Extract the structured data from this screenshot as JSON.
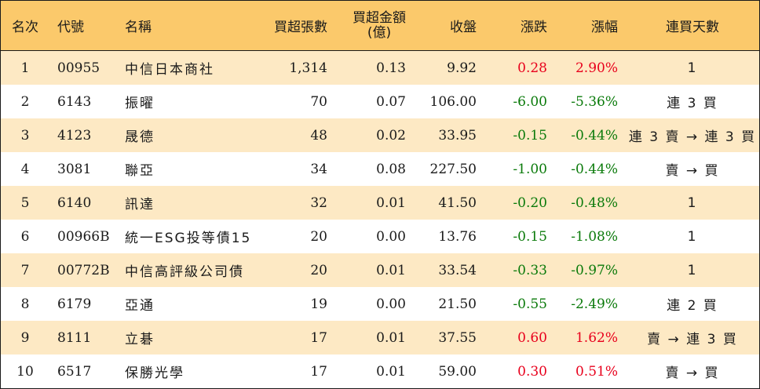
{
  "headers": {
    "rank": "名次",
    "code": "代號",
    "name": "名稱",
    "net_buy_volume": "買超張數",
    "net_buy_amount_line1": "買超金額",
    "net_buy_amount_line2": "(億)",
    "close": "收盤",
    "change": "漲跌",
    "change_pct": "漲幅",
    "consecutive_days": "連買天數"
  },
  "colors": {
    "header_bg": "#fbc96b",
    "stripe_bg": "#fde9c4",
    "up": "#e8001c",
    "down": "#0a7a0a"
  },
  "rows": [
    {
      "rank": "1",
      "code": "00955",
      "name": "中信日本商社",
      "volume": "1,314",
      "amount": "0.13",
      "close": "9.92",
      "change": "0.28",
      "pct": "2.90%",
      "trend": "up",
      "days": "1"
    },
    {
      "rank": "2",
      "code": "6143",
      "name": "振曜",
      "volume": "70",
      "amount": "0.07",
      "close": "106.00",
      "change": "-6.00",
      "pct": "-5.36%",
      "trend": "down",
      "days": "連 3 買"
    },
    {
      "rank": "3",
      "code": "4123",
      "name": "晟德",
      "volume": "48",
      "amount": "0.02",
      "close": "33.95",
      "change": "-0.15",
      "pct": "-0.44%",
      "trend": "down",
      "days": "連 3 賣 → 連 3 買"
    },
    {
      "rank": "4",
      "code": "3081",
      "name": "聯亞",
      "volume": "34",
      "amount": "0.08",
      "close": "227.50",
      "change": "-1.00",
      "pct": "-0.44%",
      "trend": "down",
      "days": "賣 → 買"
    },
    {
      "rank": "5",
      "code": "6140",
      "name": "訊達",
      "volume": "32",
      "amount": "0.01",
      "close": "41.50",
      "change": "-0.20",
      "pct": "-0.48%",
      "trend": "down",
      "days": "1"
    },
    {
      "rank": "6",
      "code": "00966B",
      "name": "統一ESG投等債15",
      "volume": "20",
      "amount": "0.00",
      "close": "13.76",
      "change": "-0.15",
      "pct": "-1.08%",
      "trend": "down",
      "days": "1"
    },
    {
      "rank": "7",
      "code": "00772B",
      "name": "中信高評級公司債",
      "volume": "20",
      "amount": "0.01",
      "close": "33.54",
      "change": "-0.33",
      "pct": "-0.97%",
      "trend": "down",
      "days": "1"
    },
    {
      "rank": "8",
      "code": "6179",
      "name": "亞通",
      "volume": "19",
      "amount": "0.00",
      "close": "21.50",
      "change": "-0.55",
      "pct": "-2.49%",
      "trend": "down",
      "days": "連 2 買"
    },
    {
      "rank": "9",
      "code": "8111",
      "name": "立碁",
      "volume": "17",
      "amount": "0.01",
      "close": "37.55",
      "change": "0.60",
      "pct": "1.62%",
      "trend": "up",
      "days": "賣 → 連 3 買"
    },
    {
      "rank": "10",
      "code": "6517",
      "name": "保勝光學",
      "volume": "17",
      "amount": "0.01",
      "close": "59.00",
      "change": "0.30",
      "pct": "0.51%",
      "trend": "up",
      "days": "賣 → 買"
    }
  ]
}
